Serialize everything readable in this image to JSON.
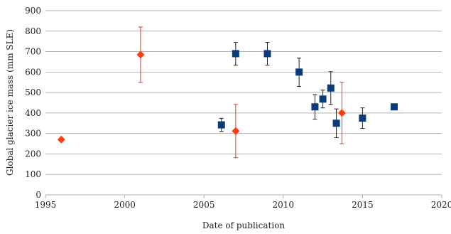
{
  "chart_data": {
    "type": "scatter",
    "xlabel": "Date of publication",
    "ylabel": "Global glacier ice mass (mm SLE)",
    "xlim": [
      1995,
      2020
    ],
    "ylim": [
      0,
      900
    ],
    "x_ticks": [
      "1995",
      "2000",
      "2005",
      "2010",
      "2015",
      "2020"
    ],
    "y_ticks": [
      "0",
      "100",
      "200",
      "300",
      "400",
      "500",
      "600",
      "700",
      "800",
      "900"
    ],
    "grid": "horizontal",
    "series": [
      {
        "marker": "diamond",
        "color": "#ff3d0f",
        "error_color": "#e03a2a",
        "points": [
          {
            "x": 1996.0,
            "y": 270
          },
          {
            "x": 2001.0,
            "y": 685,
            "err_low": 550,
            "err_high": 820
          },
          {
            "x": 2007.0,
            "y": 312,
            "err_low": 182,
            "err_high": 442
          },
          {
            "x": 2013.7,
            "y": 400,
            "err_low": 250,
            "err_high": 550
          }
        ]
      },
      {
        "marker": "square",
        "color": "#0b3c7a",
        "error_color": "#222222",
        "points": [
          {
            "x": 2006.1,
            "y": 342,
            "err_low": 310,
            "err_high": 374
          },
          {
            "x": 2007.0,
            "y": 690,
            "err_low": 634,
            "err_high": 745
          },
          {
            "x": 2009.0,
            "y": 690,
            "err_low": 634,
            "err_high": 745
          },
          {
            "x": 2011.0,
            "y": 600,
            "err_low": 530,
            "err_high": 668
          },
          {
            "x": 2012.0,
            "y": 430,
            "err_low": 370,
            "err_high": 490
          },
          {
            "x": 2012.5,
            "y": 468,
            "err_low": 425,
            "err_high": 512
          },
          {
            "x": 2013.0,
            "y": 522,
            "err_low": 442,
            "err_high": 602
          },
          {
            "x": 2013.35,
            "y": 350,
            "err_low": 280,
            "err_high": 420
          },
          {
            "x": 2015.0,
            "y": 375,
            "err_low": 325,
            "err_high": 425
          },
          {
            "x": 2017.0,
            "y": 430,
            "err_low": 418,
            "err_high": 442
          }
        ]
      }
    ]
  }
}
